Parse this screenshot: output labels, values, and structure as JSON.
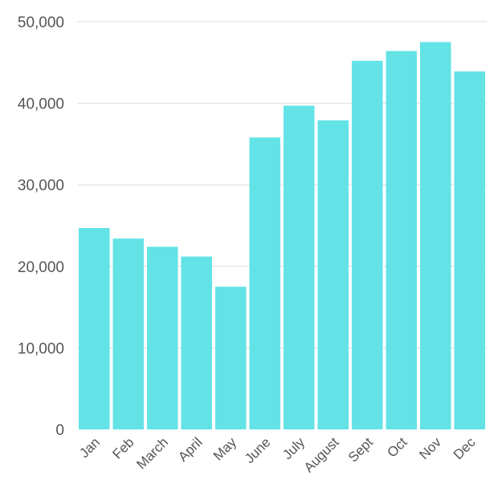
{
  "chart_data": {
    "type": "bar",
    "title": "",
    "xlabel": "",
    "ylabel": "",
    "categories": [
      "Jan",
      "Feb",
      "March",
      "April",
      "May",
      "June",
      "July",
      "August",
      "Sept",
      "Oct",
      "Nov",
      "Dec"
    ],
    "values": [
      24700,
      23400,
      22400,
      21200,
      17500,
      35800,
      39700,
      37900,
      45200,
      46400,
      47500,
      43900
    ],
    "ylim": [
      0,
      50000
    ],
    "yticks": [
      0,
      10000,
      20000,
      30000,
      40000,
      50000
    ],
    "ytick_labels": [
      "0",
      "10,000",
      "20,000",
      "30,000",
      "40,000",
      "50,000"
    ],
    "grid": true,
    "legend": "none",
    "bar_color": "#63e3e6",
    "grid_color": "#dcdcdc",
    "tick_label_color": "#555555"
  }
}
